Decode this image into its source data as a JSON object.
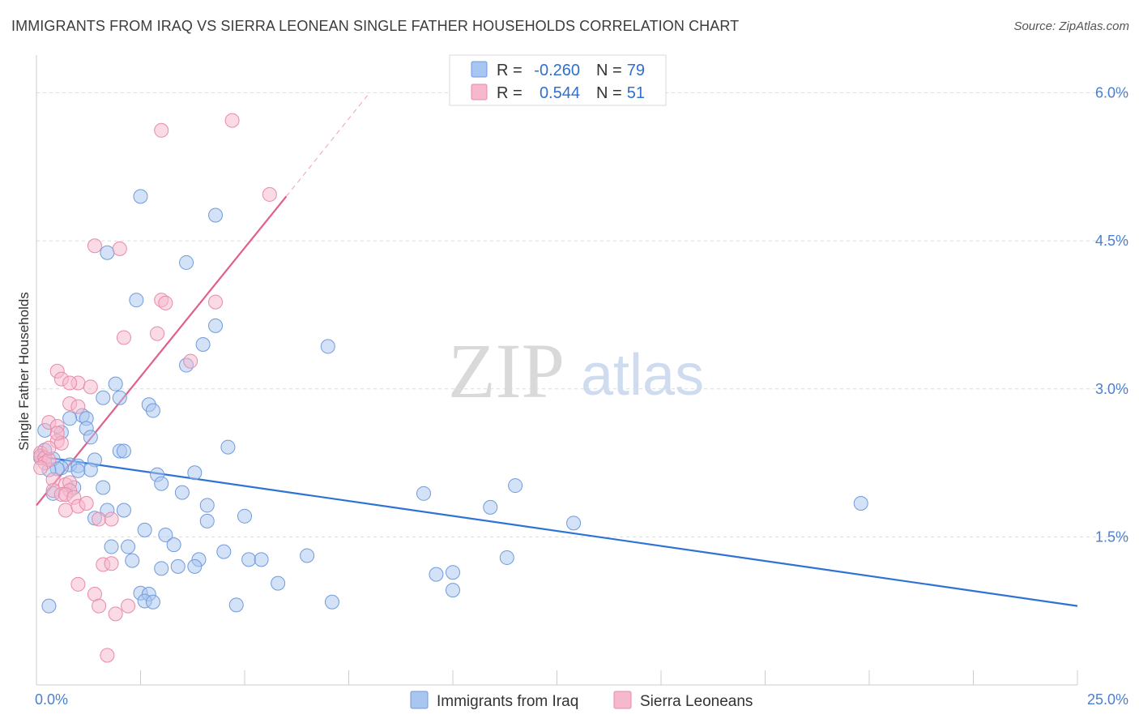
{
  "header": {
    "title": "IMMIGRANTS FROM IRAQ VS SIERRA LEONEAN SINGLE FATHER HOUSEHOLDS CORRELATION CHART",
    "source": "Source: ZipAtlas.com"
  },
  "watermark": {
    "part1": "ZIP",
    "part2": "atlas"
  },
  "colors": {
    "iraq_fill": "#a9c6f0",
    "iraq_stroke": "#6f9bdc",
    "iraq_line": "#2f72d6",
    "sl_fill": "#f6b8cc",
    "sl_stroke": "#e88aa8",
    "sl_line": "#e0608a",
    "grid": "#dcdcdc",
    "tick_text": "#4a7fd0"
  },
  "legend": {
    "rows": [
      {
        "r_label": "R =",
        "r_value": "-0.260",
        "n_label": "N =",
        "n_value": "79"
      },
      {
        "r_label": "R =",
        "r_value": "0.544",
        "n_label": "N =",
        "n_value": "51"
      }
    ]
  },
  "chart_data": {
    "type": "scatter",
    "title": "IMMIGRANTS FROM IRAQ VS SIERRA LEONEAN SINGLE FATHER HOUSEHOLDS CORRELATION CHART",
    "xlabel": "",
    "ylabel": "Single Father Households",
    "xlim": [
      0,
      25
    ],
    "ylim": [
      0,
      6.3
    ],
    "x_tick_labels": [
      "0.0%",
      "25.0%"
    ],
    "y_ticks": [
      1.5,
      3.0,
      4.5,
      6.0
    ],
    "y_tick_labels": [
      "1.5%",
      "3.0%",
      "4.5%",
      "6.0%"
    ],
    "series": [
      {
        "name": "Immigrants from Iraq",
        "r": -0.26,
        "n": 79,
        "trend": {
          "x0": 0.0,
          "y0": 2.32,
          "x1": 25.0,
          "y1": 0.8
        },
        "points": [
          [
            2.5,
            4.95
          ],
          [
            4.3,
            4.76
          ],
          [
            1.7,
            4.38
          ],
          [
            3.6,
            4.28
          ],
          [
            2.4,
            3.9
          ],
          [
            4.3,
            3.64
          ],
          [
            4.0,
            3.45
          ],
          [
            7.0,
            3.43
          ],
          [
            3.6,
            3.24
          ],
          [
            1.9,
            3.05
          ],
          [
            1.6,
            2.91
          ],
          [
            2.0,
            2.91
          ],
          [
            2.7,
            2.84
          ],
          [
            2.8,
            2.78
          ],
          [
            1.1,
            2.73
          ],
          [
            1.2,
            2.7
          ],
          [
            0.8,
            2.7
          ],
          [
            1.2,
            2.6
          ],
          [
            0.2,
            2.58
          ],
          [
            0.6,
            2.56
          ],
          [
            1.3,
            2.51
          ],
          [
            4.6,
            2.41
          ],
          [
            2.0,
            2.37
          ],
          [
            2.1,
            2.37
          ],
          [
            0.2,
            2.38
          ],
          [
            0.4,
            2.29
          ],
          [
            1.4,
            2.28
          ],
          [
            0.8,
            2.23
          ],
          [
            1.0,
            2.22
          ],
          [
            0.6,
            2.2
          ],
          [
            0.5,
            2.19
          ],
          [
            0.3,
            2.18
          ],
          [
            1.3,
            2.18
          ],
          [
            1.0,
            2.17
          ],
          [
            3.8,
            2.15
          ],
          [
            2.9,
            2.13
          ],
          [
            3.0,
            2.04
          ],
          [
            11.5,
            2.02
          ],
          [
            0.9,
            2.0
          ],
          [
            1.6,
            2.0
          ],
          [
            3.5,
            1.95
          ],
          [
            9.3,
            1.94
          ],
          [
            0.4,
            1.94
          ],
          [
            4.1,
            1.82
          ],
          [
            10.9,
            1.8
          ],
          [
            19.8,
            1.84
          ],
          [
            1.7,
            1.77
          ],
          [
            2.1,
            1.77
          ],
          [
            5.0,
            1.71
          ],
          [
            4.1,
            1.66
          ],
          [
            1.4,
            1.69
          ],
          [
            12.9,
            1.64
          ],
          [
            2.6,
            1.57
          ],
          [
            3.1,
            1.52
          ],
          [
            3.3,
            1.42
          ],
          [
            1.8,
            1.4
          ],
          [
            2.2,
            1.4
          ],
          [
            4.5,
            1.35
          ],
          [
            6.5,
            1.31
          ],
          [
            2.3,
            1.26
          ],
          [
            3.9,
            1.27
          ],
          [
            5.1,
            1.27
          ],
          [
            5.4,
            1.27
          ],
          [
            11.3,
            1.29
          ],
          [
            3.0,
            1.18
          ],
          [
            3.4,
            1.2
          ],
          [
            3.8,
            1.2
          ],
          [
            9.6,
            1.12
          ],
          [
            10.0,
            1.14
          ],
          [
            5.8,
            1.03
          ],
          [
            2.5,
            0.93
          ],
          [
            2.7,
            0.92
          ],
          [
            10.0,
            0.96
          ],
          [
            2.6,
            0.85
          ],
          [
            2.8,
            0.84
          ],
          [
            4.8,
            0.81
          ],
          [
            7.1,
            0.84
          ],
          [
            0.3,
            0.8
          ],
          [
            0.1,
            2.3
          ]
        ]
      },
      {
        "name": "Sierra Leoneans",
        "r": 0.544,
        "n": 51,
        "trend": {
          "x0": 0.0,
          "y0": 1.82,
          "x1": 6.0,
          "y1": 4.95,
          "x2": 8.0,
          "y2": 6.0
        },
        "points": [
          [
            3.0,
            5.62
          ],
          [
            4.7,
            5.72
          ],
          [
            5.6,
            4.97
          ],
          [
            1.4,
            4.45
          ],
          [
            2.0,
            4.42
          ],
          [
            3.0,
            3.9
          ],
          [
            3.1,
            3.87
          ],
          [
            4.3,
            3.88
          ],
          [
            2.9,
            3.56
          ],
          [
            2.1,
            3.52
          ],
          [
            3.7,
            3.28
          ],
          [
            0.5,
            3.18
          ],
          [
            0.6,
            3.1
          ],
          [
            1.0,
            3.06
          ],
          [
            0.8,
            3.06
          ],
          [
            1.3,
            3.02
          ],
          [
            0.8,
            2.85
          ],
          [
            1.0,
            2.82
          ],
          [
            0.3,
            2.66
          ],
          [
            0.5,
            2.62
          ],
          [
            0.5,
            2.47
          ],
          [
            0.6,
            2.45
          ],
          [
            0.1,
            2.35
          ],
          [
            0.1,
            2.32
          ],
          [
            0.2,
            2.3
          ],
          [
            0.2,
            2.25
          ],
          [
            0.3,
            2.28
          ],
          [
            0.1,
            2.2
          ],
          [
            0.4,
            2.08
          ],
          [
            0.7,
            2.03
          ],
          [
            0.8,
            2.05
          ],
          [
            0.8,
            1.97
          ],
          [
            0.4,
            1.97
          ],
          [
            0.6,
            1.93
          ],
          [
            0.7,
            1.93
          ],
          [
            0.9,
            1.9
          ],
          [
            0.7,
            1.77
          ],
          [
            1.0,
            1.81
          ],
          [
            1.2,
            1.84
          ],
          [
            1.5,
            1.68
          ],
          [
            1.8,
            1.68
          ],
          [
            1.6,
            1.22
          ],
          [
            1.8,
            1.23
          ],
          [
            1.0,
            1.02
          ],
          [
            1.4,
            0.92
          ],
          [
            2.2,
            0.8
          ],
          [
            1.5,
            0.8
          ],
          [
            1.9,
            0.72
          ],
          [
            1.7,
            0.3
          ],
          [
            0.3,
            2.4
          ],
          [
            0.5,
            2.55
          ]
        ]
      }
    ]
  }
}
